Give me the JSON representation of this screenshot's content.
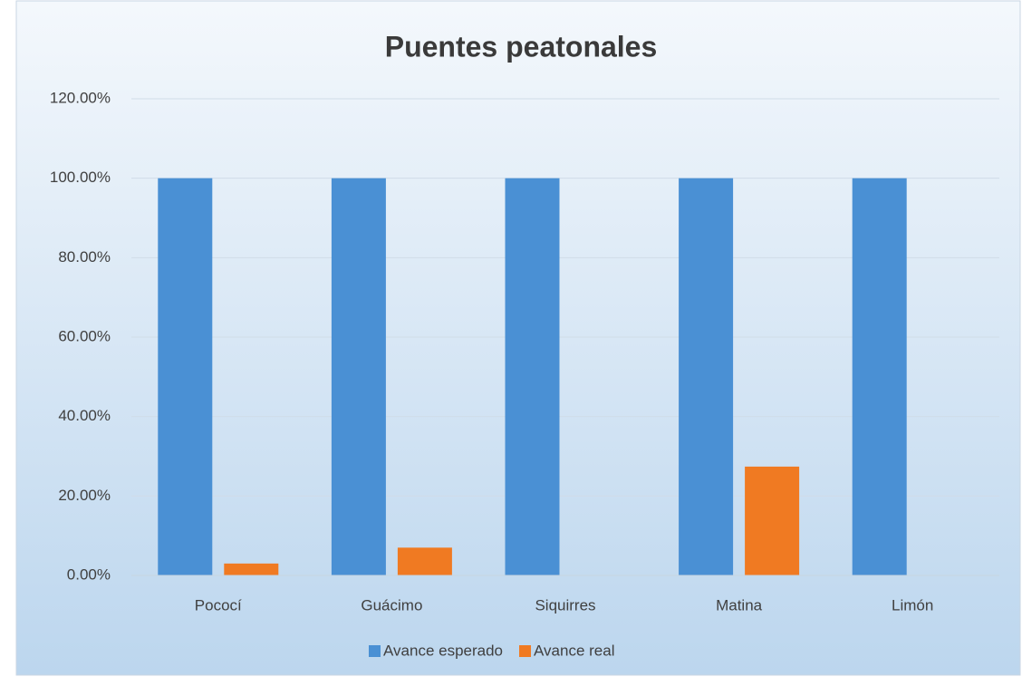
{
  "chart_data": {
    "type": "bar",
    "title": "Puentes peatonales",
    "categories": [
      "Pococí",
      "Guácimo",
      "Siquirres",
      "Matina",
      "Limón"
    ],
    "series": [
      {
        "name": "Avance esperado",
        "color": "#4a90d4",
        "values": [
          100,
          100,
          100,
          100,
          100
        ]
      },
      {
        "name": "Avance real",
        "color": "#f07a22",
        "values": [
          3,
          7,
          0,
          27.4,
          0
        ]
      }
    ],
    "ylim": [
      0,
      120
    ],
    "yticks": [
      {
        "value": 0,
        "label": "0.00%"
      },
      {
        "value": 20,
        "label": "20.00%"
      },
      {
        "value": 40,
        "label": "40.00%"
      },
      {
        "value": 60,
        "label": "60.00%"
      },
      {
        "value": 80,
        "label": "80.00%"
      },
      {
        "value": 100,
        "label": "100.00%"
      },
      {
        "value": 120,
        "label": "120.00%"
      }
    ],
    "grid": true,
    "legend": "bottom"
  }
}
